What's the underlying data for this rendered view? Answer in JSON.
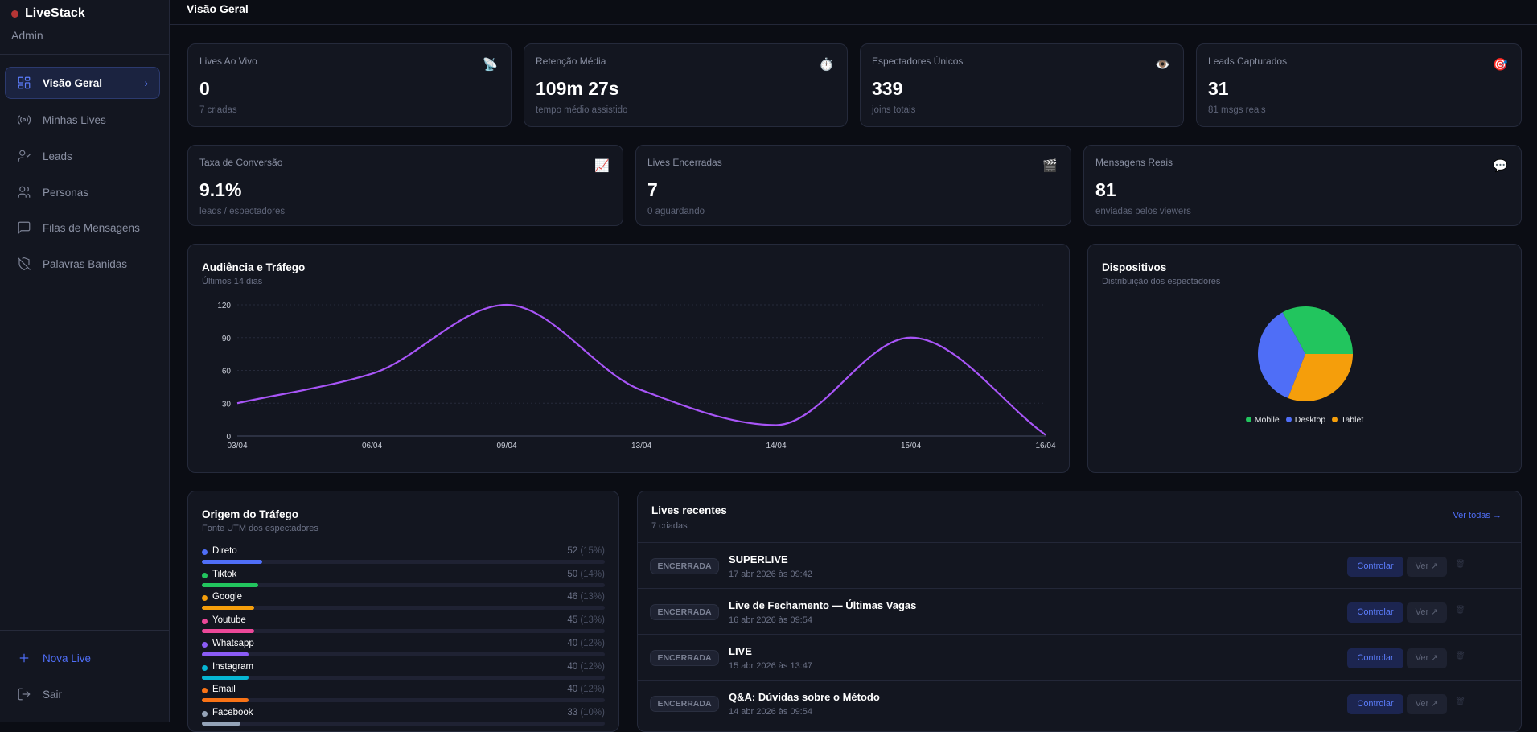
{
  "brand": {
    "name": "LiveStack",
    "role": "Admin"
  },
  "sidebar": {
    "items": [
      {
        "label": "Visão Geral",
        "icon": "grid-icon",
        "active": true
      },
      {
        "label": "Minhas Lives",
        "icon": "broadcast-icon"
      },
      {
        "label": "Leads",
        "icon": "user-check-icon"
      },
      {
        "label": "Personas",
        "icon": "users-icon"
      },
      {
        "label": "Filas de Mensagens",
        "icon": "message-square-icon"
      },
      {
        "label": "Palavras Banidas",
        "icon": "shield-off-icon"
      }
    ],
    "new_live": "Nova Live",
    "logout": "Sair"
  },
  "header": {
    "title": "Visão Geral"
  },
  "stats": [
    {
      "label": "Lives Ao Vivo",
      "value": "0",
      "sub": "7 criadas",
      "icon": "📡"
    },
    {
      "label": "Retenção Média",
      "value": "109m 27s",
      "sub": "tempo médio assistido",
      "icon": "⏱️"
    },
    {
      "label": "Espectadores Únicos",
      "value": "339",
      "sub": "joins totais",
      "icon": "👁️"
    },
    {
      "label": "Leads Capturados",
      "value": "31",
      "sub": "81 msgs reais",
      "icon": "🎯"
    },
    {
      "label": "Taxa de Conversão",
      "value": "9.1%",
      "sub": "leads / espectadores",
      "icon": "📈"
    },
    {
      "label": "Lives Encerradas",
      "value": "7",
      "sub": "0 aguardando",
      "icon": "🎬"
    },
    {
      "label": "Mensagens Reais",
      "value": "81",
      "sub": "enviadas pelos viewers",
      "icon": "💬"
    }
  ],
  "chart_data": [
    {
      "type": "line",
      "title": "Audiência e Tráfego",
      "subtitle": "Últimos 14 dias",
      "categories": [
        "03/04",
        "06/04",
        "09/04",
        "13/04",
        "14/04",
        "15/04",
        "16/04"
      ],
      "values": [
        30,
        57,
        120,
        42,
        10,
        90,
        1
      ],
      "yticks": [
        0,
        30,
        60,
        90,
        120
      ],
      "ylim": [
        0,
        120
      ],
      "grid": true,
      "color": "#a855f7"
    },
    {
      "type": "pie",
      "title": "Dispositivos",
      "subtitle": "Distribuição dos espectadores",
      "categories": [
        "Mobile",
        "Desktop",
        "Tablet"
      ],
      "values": [
        33,
        36,
        31
      ],
      "colors": [
        "#22c55e",
        "#4f6ef7",
        "#f59e0b"
      ],
      "legend": "bottom"
    }
  ],
  "traffic": {
    "title": "Origem do Tráfego",
    "subtitle": "Fonte UTM dos espectadores",
    "items": [
      {
        "name": "Direto",
        "count": "52",
        "pct": "(15%)",
        "value": 15,
        "color": "#4f6ef7"
      },
      {
        "name": "Tiktok",
        "count": "50",
        "pct": "(14%)",
        "value": 14,
        "color": "#22c55e"
      },
      {
        "name": "Google",
        "count": "46",
        "pct": "(13%)",
        "value": 13,
        "color": "#f59e0b"
      },
      {
        "name": "Youtube",
        "count": "45",
        "pct": "(13%)",
        "value": 13,
        "color": "#ec4899"
      },
      {
        "name": "Whatsapp",
        "count": "40",
        "pct": "(12%)",
        "value": 11.5,
        "color": "#8b5cf6"
      },
      {
        "name": "Instagram",
        "count": "40",
        "pct": "(12%)",
        "value": 11.5,
        "color": "#06b6d4"
      },
      {
        "name": "Email",
        "count": "40",
        "pct": "(12%)",
        "value": 11.5,
        "color": "#f97316"
      },
      {
        "name": "Facebook",
        "count": "33",
        "pct": "(10%)",
        "value": 9.5,
        "color": "#94a3b8"
      }
    ]
  },
  "lives": {
    "title": "Lives recentes",
    "subtitle": "7 criadas",
    "see_all": "Ver todas →",
    "control": "Controlar",
    "view": "Ver ↗",
    "rows": [
      {
        "status": "ENCERRADA",
        "name": "SUPERLIVE",
        "date": "17 abr 2026 às 09:42"
      },
      {
        "status": "ENCERRADA",
        "name": "Live de Fechamento — Últimas Vagas",
        "date": "16 abr 2026 às 09:54"
      },
      {
        "status": "ENCERRADA",
        "name": "LIVE",
        "date": "15 abr 2026 às 13:47"
      },
      {
        "status": "ENCERRADA",
        "name": "Q&A: Dúvidas sobre o Método",
        "date": "14 abr 2026 às 09:54"
      }
    ]
  }
}
